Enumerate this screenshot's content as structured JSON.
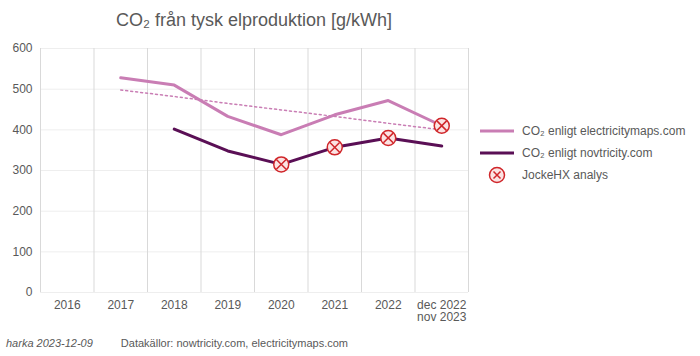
{
  "chart_data": {
    "type": "line",
    "title": "CO₂ från tysk elproduktion [g/kWh]",
    "categories": [
      "2016",
      "2017",
      "2018",
      "2019",
      "2020",
      "2021",
      "2022",
      "dec 2022\nnov 2023"
    ],
    "series": [
      {
        "name": null,
        "color": "#c97db4",
        "line_style": "dotted",
        "values": [
          null,
          498,
          482,
          465,
          449,
          433,
          416,
          400
        ]
      },
      {
        "name": "CO₂ enligt electricitymaps.com",
        "color": "#c97db4",
        "line_style": "solid",
        "values": [
          null,
          528,
          510,
          433,
          388,
          437,
          472,
          410
        ]
      },
      {
        "name": "CO₂ enligt novtricity.com",
        "color": "#5a0f55",
        "line_style": "solid",
        "values": [
          null,
          null,
          402,
          348,
          315,
          357,
          380,
          360
        ]
      },
      {
        "name": "JockeHX analys",
        "type": "scatter",
        "marker": "circle-x",
        "color": "#d0262a",
        "values": [
          null,
          null,
          null,
          null,
          315,
          357,
          380,
          410
        ]
      }
    ],
    "ylim": [
      0,
      600
    ],
    "yticks": [
      0,
      100,
      200,
      300,
      400,
      500,
      600
    ],
    "grid": true,
    "legend": "right",
    "caption": [
      "harka 2023-12-09",
      "Datakällor: nowtricity.com, electricitymaps.com"
    ]
  }
}
